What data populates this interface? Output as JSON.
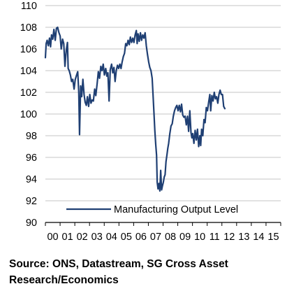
{
  "chart_data": {
    "type": "line",
    "x_tick_labels": [
      "00",
      "01",
      "02",
      "03",
      "04",
      "05",
      "06",
      "07",
      "08",
      "09",
      "10",
      "11",
      "12",
      "13",
      "14",
      "15"
    ],
    "ylim": [
      90,
      110
    ],
    "yticks": [
      90,
      92,
      94,
      96,
      98,
      100,
      102,
      104,
      106,
      108,
      110
    ],
    "grid": true,
    "legend": "bottom-right",
    "series": [
      {
        "name": "Manufacturing Output Level",
        "color": "#1f3f73",
        "points": [
          [
            0.0,
            105.2
          ],
          [
            0.05,
            106.5
          ],
          [
            0.12,
            106.8
          ],
          [
            0.2,
            106.3
          ],
          [
            0.28,
            107.0
          ],
          [
            0.35,
            106.2
          ],
          [
            0.42,
            107.3
          ],
          [
            0.5,
            106.9
          ],
          [
            0.58,
            107.8
          ],
          [
            0.67,
            106.8
          ],
          [
            0.75,
            107.9
          ],
          [
            0.83,
            108.0
          ],
          [
            0.92,
            107.5
          ],
          [
            1.0,
            107.2
          ],
          [
            1.08,
            106.0
          ],
          [
            1.17,
            106.9
          ],
          [
            1.25,
            106.5
          ],
          [
            1.33,
            104.4
          ],
          [
            1.42,
            105.9
          ],
          [
            1.5,
            106.6
          ],
          [
            1.55,
            104.2
          ],
          [
            1.62,
            104.0
          ],
          [
            1.7,
            103.6
          ],
          [
            1.78,
            103.0
          ],
          [
            1.86,
            103.2
          ],
          [
            1.95,
            102.3
          ],
          [
            2.03,
            103.2
          ],
          [
            2.12,
            103.6
          ],
          [
            2.2,
            103.9
          ],
          [
            2.27,
            102.0
          ],
          [
            2.32,
            98.1
          ],
          [
            2.4,
            102.6
          ],
          [
            2.47,
            101.6
          ],
          [
            2.55,
            103.2
          ],
          [
            2.63,
            101.8
          ],
          [
            2.7,
            101.1
          ],
          [
            2.78,
            100.8
          ],
          [
            2.86,
            101.6
          ],
          [
            2.94,
            100.7
          ],
          [
            3.02,
            101.8
          ],
          [
            3.1,
            101.0
          ],
          [
            3.18,
            101.3
          ],
          [
            3.26,
            101.2
          ],
          [
            3.35,
            102.3
          ],
          [
            3.43,
            101.7
          ],
          [
            3.52,
            102.8
          ],
          [
            3.6,
            103.9
          ],
          [
            3.68,
            103.3
          ],
          [
            3.77,
            104.4
          ],
          [
            3.85,
            104.0
          ],
          [
            3.93,
            104.6
          ],
          [
            4.01,
            103.6
          ],
          [
            4.1,
            104.2
          ],
          [
            4.18,
            103.5
          ],
          [
            4.25,
            103.8
          ],
          [
            4.33,
            101.2
          ],
          [
            4.41,
            104.1
          ],
          [
            4.5,
            104.6
          ],
          [
            4.58,
            103.8
          ],
          [
            4.66,
            104.3
          ],
          [
            4.74,
            103.0
          ],
          [
            4.82,
            104.0
          ],
          [
            4.9,
            104.5
          ],
          [
            4.98,
            104.2
          ],
          [
            5.06,
            104.6
          ],
          [
            5.14,
            104.2
          ],
          [
            5.22,
            104.8
          ],
          [
            5.3,
            105.3
          ],
          [
            5.38,
            105.6
          ],
          [
            5.46,
            106.5
          ],
          [
            5.54,
            106.3
          ],
          [
            5.62,
            106.8
          ],
          [
            5.7,
            106.4
          ],
          [
            5.78,
            107.1
          ],
          [
            5.86,
            106.6
          ],
          [
            5.94,
            107.0
          ],
          [
            6.02,
            106.6
          ],
          [
            6.1,
            107.3
          ],
          [
            6.18,
            107.7
          ],
          [
            6.24,
            106.5
          ],
          [
            6.3,
            107.4
          ],
          [
            6.38,
            106.7
          ],
          [
            6.46,
            107.5
          ],
          [
            6.54,
            106.8
          ],
          [
            6.62,
            107.3
          ],
          [
            6.7,
            107.0
          ],
          [
            6.78,
            107.5
          ],
          [
            6.86,
            106.3
          ],
          [
            6.94,
            105.5
          ],
          [
            7.02,
            104.8
          ],
          [
            7.1,
            104.3
          ],
          [
            7.18,
            104.0
          ],
          [
            7.26,
            103.3
          ],
          [
            7.32,
            101.7
          ],
          [
            7.38,
            100.2
          ],
          [
            7.44,
            98.5
          ],
          [
            7.5,
            97.2
          ],
          [
            7.56,
            96.2
          ],
          [
            7.6,
            93.7
          ],
          [
            7.66,
            93.1
          ],
          [
            7.72,
            93.6
          ],
          [
            7.78,
            92.9
          ],
          [
            7.84,
            94.8
          ],
          [
            7.9,
            93.0
          ],
          [
            7.96,
            93.4
          ],
          [
            8.02,
            93.7
          ],
          [
            8.08,
            94.2
          ],
          [
            8.14,
            94.4
          ],
          [
            8.2,
            95.6
          ],
          [
            8.26,
            96.2
          ],
          [
            8.32,
            96.8
          ],
          [
            8.38,
            97.3
          ],
          [
            8.46,
            98.2
          ],
          [
            8.54,
            98.9
          ],
          [
            8.62,
            99.1
          ],
          [
            8.7,
            99.8
          ],
          [
            8.78,
            100.3
          ],
          [
            8.86,
            100.6
          ],
          [
            8.94,
            100.8
          ],
          [
            9.02,
            100.3
          ],
          [
            9.1,
            100.8
          ],
          [
            9.18,
            100.2
          ],
          [
            9.26,
            100.9
          ],
          [
            9.34,
            99.9
          ],
          [
            9.42,
            99.7
          ],
          [
            9.5,
            99.8
          ],
          [
            9.58,
            99.0
          ],
          [
            9.66,
            99.8
          ],
          [
            9.74,
            98.4
          ],
          [
            9.82,
            100.3
          ],
          [
            9.9,
            98.3
          ],
          [
            9.96,
            97.8
          ],
          [
            10.02,
            98.2
          ],
          [
            10.1,
            97.3
          ],
          [
            10.18,
            98.5
          ],
          [
            10.26,
            97.6
          ],
          [
            10.34,
            98.6
          ],
          [
            10.42,
            97.0
          ],
          [
            10.5,
            98.0
          ],
          [
            10.56,
            97.1
          ],
          [
            10.62,
            98.6
          ],
          [
            10.7,
            98.0
          ],
          [
            10.78,
            99.5
          ],
          [
            10.86,
            99.2
          ],
          [
            10.94,
            100.6
          ],
          [
            11.02,
            100.3
          ],
          [
            11.1,
            101.1
          ],
          [
            11.18,
            101.8
          ],
          [
            11.24,
            100.3
          ],
          [
            11.32,
            101.7
          ],
          [
            11.4,
            101.2
          ],
          [
            11.48,
            102.0
          ],
          [
            11.56,
            101.4
          ],
          [
            11.64,
            101.6
          ],
          [
            11.72,
            101.0
          ],
          [
            11.8,
            101.8
          ],
          [
            11.88,
            102.2
          ],
          [
            11.96,
            101.8
          ],
          [
            12.04,
            101.8
          ],
          [
            12.12,
            100.7
          ],
          [
            12.2,
            100.5
          ]
        ]
      }
    ]
  },
  "source": {
    "line1": "Source: ONS, Datastream, SG Cross Asset",
    "line2": "Research/Economics"
  }
}
